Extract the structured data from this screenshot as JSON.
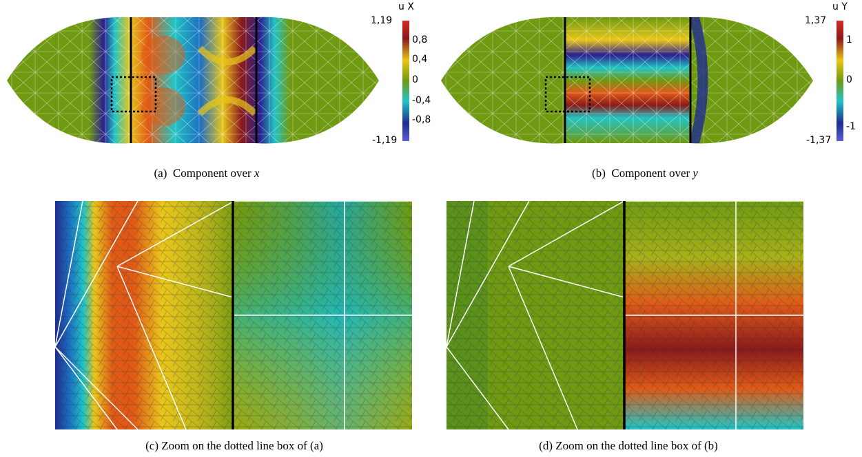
{
  "figure": {
    "panels": [
      {
        "id": "a",
        "caption_prefix": "(a)",
        "caption_text": "Component over",
        "caption_var": "x",
        "colorbar": {
          "title": "u X",
          "ticks": [
            "1,19",
            "0,8",
            "0,4",
            "0",
            "-0,4",
            "-0,8",
            "-1,19"
          ]
        }
      },
      {
        "id": "b",
        "caption_prefix": "(b)",
        "caption_text": "Component over",
        "caption_var": "y",
        "colorbar": {
          "title": "u Y",
          "ticks": [
            "1,37",
            "1",
            "0",
            "-1",
            "-1,37"
          ]
        }
      },
      {
        "id": "c",
        "caption": "(c)  Zoom on the dotted line box of (a)"
      },
      {
        "id": "d",
        "caption": "(d)  Zoom on the dotted line box of (b)"
      }
    ],
    "colors": {
      "background_field": "#6f9a12",
      "mesh_white": "#ffffff",
      "interface_black": "#000000",
      "colormap": [
        "#2b1f8f",
        "#1d6fbf",
        "#22c4c4",
        "#6f9a12",
        "#e8c61a",
        "#e05a16",
        "#8b1a1a"
      ]
    }
  }
}
